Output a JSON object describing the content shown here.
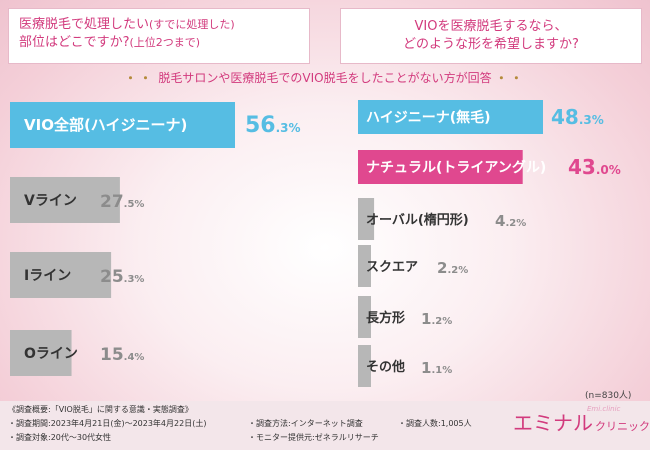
{
  "question_left": {
    "line1": "医療脱毛で処理したい",
    "line1_note": "(すでに処理した)",
    "line2": "部位はどこですか?",
    "line2_note": "(上位2つまで)"
  },
  "question_right": {
    "line1": "VIOを医療脱毛するなら、",
    "line2": "どのような形を希望しますか?"
  },
  "subtitle": {
    "dots": "・・",
    "text": "脱毛サロンや医療脱毛でのVIO脱毛をしたことがない方が回答"
  },
  "colors": {
    "blue": "#56bde3",
    "pink": "#e0488f",
    "gray": "#b7b7b7",
    "value": "#8c8c8c"
  },
  "chart_data": [
    {
      "type": "bar",
      "title": "医療脱毛で処理したい(すでに処理した)部位はどこですか?(上位2つまで)",
      "categories": [
        "VIO全部(ハイジニーナ)",
        "Vライン",
        "Iライン",
        "Oライン"
      ],
      "values": [
        56.3,
        27.5,
        25.3,
        15.4
      ],
      "unit": "%",
      "highlight": [
        0
      ],
      "labels_int": [
        "56",
        "27",
        "25",
        "15"
      ],
      "labels_dec": [
        ".3",
        ".5",
        ".3",
        ".4"
      ],
      "ylim": [
        0,
        100
      ]
    },
    {
      "type": "bar",
      "title": "VIOを医療脱毛するなら、どのような形を希望しますか?",
      "categories": [
        "ハイジニーナ(無毛)",
        "ナチュラル(トライアングル)",
        "オーバル(楕円形)",
        "スクエア",
        "長方形",
        "その他"
      ],
      "values": [
        48.3,
        43.0,
        4.2,
        2.2,
        1.2,
        1.1
      ],
      "unit": "%",
      "highlight": [
        0,
        1
      ],
      "labels_int": [
        "48",
        "43",
        "4",
        "2",
        "1",
        "1"
      ],
      "labels_dec": [
        ".3",
        ".0",
        ".2",
        ".2",
        ".2",
        ".1"
      ],
      "xlim": [
        0,
        100
      ]
    }
  ],
  "n_note": "(n=830人)",
  "footer": {
    "heading": "《調査概要:「VIO脱毛」に関する意識・実態調査》",
    "period": "・調査期間:2023年4月21日(金)〜2023年4月22日(土)",
    "method": "・調査方法:インターネット調査",
    "count": "・調査人数:1,005人",
    "target": "・調査対象:20代〜30代女性",
    "provider": "・モニター提供元:ゼネラルリサーチ",
    "brand_main": "エミナル",
    "brand_sub": "クリニック",
    "brand_tag": "Emi.clinic"
  }
}
